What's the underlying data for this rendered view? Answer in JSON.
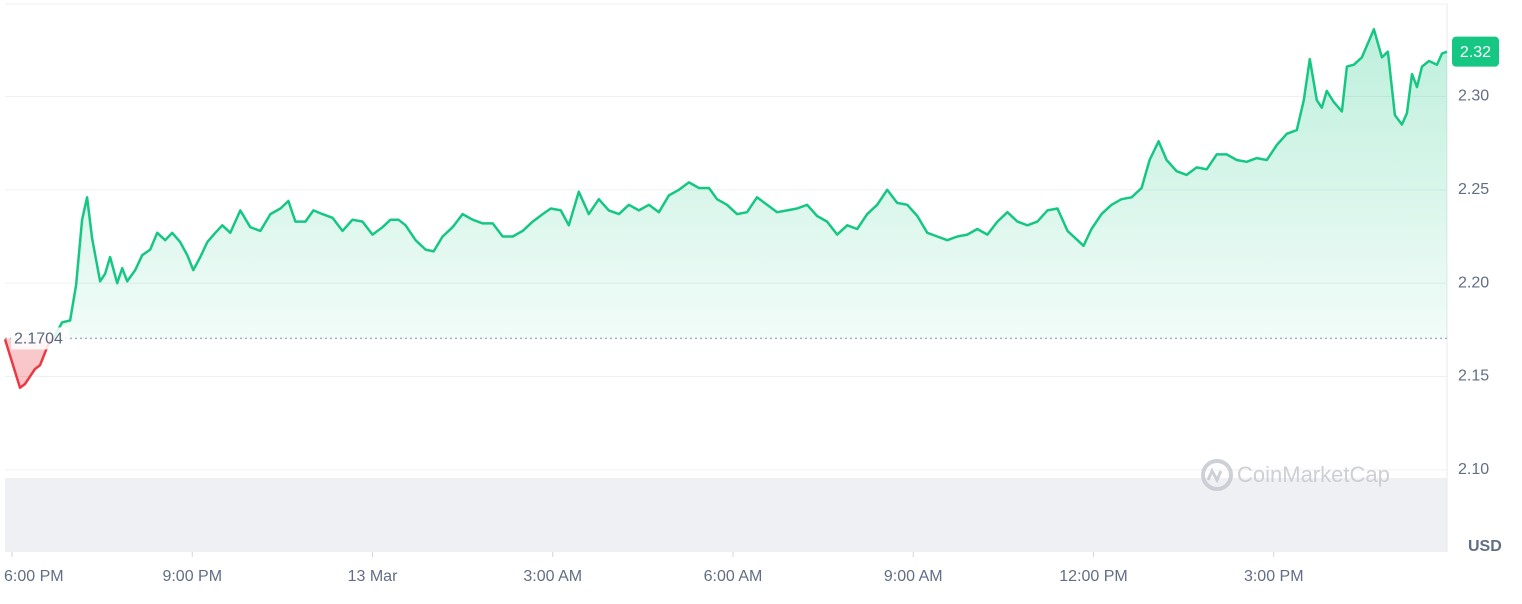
{
  "chart_data": {
    "type": "line",
    "x": [
      -7,
      8,
      13,
      23,
      28,
      36,
      43,
      50,
      58,
      64,
      70,
      75,
      80,
      88,
      93,
      98,
      105,
      110,
      115,
      123,
      130,
      138,
      145,
      153,
      160,
      168,
      175,
      181,
      188,
      195,
      203,
      210,
      218,
      228,
      238,
      248,
      258,
      268,
      276,
      283,
      293,
      301,
      310,
      320,
      330,
      340,
      350,
      360,
      370,
      378,
      386,
      393,
      403,
      413,
      421,
      430,
      440,
      450,
      460,
      470,
      480,
      490,
      500,
      510,
      520,
      530,
      538,
      548,
      556,
      566,
      576,
      586,
      596,
      606,
      616,
      626,
      636,
      646,
      656,
      666,
      676,
      686,
      696,
      704,
      714,
      724,
      734,
      744,
      754,
      764,
      774,
      784,
      794,
      804,
      814,
      824,
      834,
      844,
      854,
      864,
      874,
      884,
      894,
      904,
      914,
      924,
      934,
      944,
      954,
      964,
      974,
      984,
      994,
      1004,
      1014,
      1024,
      1034,
      1044,
      1054,
      1064,
      1070,
      1078,
      1088,
      1098,
      1108,
      1118,
      1128,
      1136,
      1145,
      1153,
      1163,
      1173,
      1183,
      1193,
      1203,
      1213,
      1223,
      1233,
      1243,
      1253,
      1263,
      1273,
      1283,
      1290,
      1296,
      1303,
      1308,
      1313,
      1320,
      1328,
      1333,
      1340,
      1348,
      1356,
      1360,
      1368,
      1374,
      1381,
      1388,
      1393,
      1398,
      1403,
      1408,
      1415,
      1423,
      1428,
      1433
    ],
    "values": [
      2.17,
      2.144,
      2.146,
      2.154,
      2.156,
      2.167,
      2.172,
      2.179,
      2.18,
      2.199,
      2.234,
      2.246,
      2.224,
      2.201,
      2.205,
      2.214,
      2.2,
      2.208,
      2.201,
      2.207,
      2.215,
      2.218,
      2.227,
      2.223,
      2.227,
      2.222,
      2.215,
      2.207,
      2.214,
      2.222,
      2.227,
      2.231,
      2.227,
      2.239,
      2.23,
      2.228,
      2.237,
      2.24,
      2.244,
      2.233,
      2.233,
      2.239,
      2.237,
      2.235,
      2.228,
      2.234,
      2.233,
      2.226,
      2.23,
      2.234,
      2.234,
      2.231,
      2.223,
      2.218,
      2.217,
      2.225,
      2.23,
      2.237,
      2.234,
      2.232,
      2.232,
      2.225,
      2.225,
      2.228,
      2.233,
      2.237,
      2.24,
      2.239,
      2.231,
      2.249,
      2.237,
      2.245,
      2.239,
      2.237,
      2.242,
      2.239,
      2.242,
      2.238,
      2.247,
      2.25,
      2.254,
      2.251,
      2.251,
      2.245,
      2.242,
      2.237,
      2.238,
      2.246,
      2.242,
      2.238,
      2.239,
      2.24,
      2.242,
      2.236,
      2.233,
      2.226,
      2.231,
      2.229,
      2.237,
      2.242,
      2.25,
      2.243,
      2.242,
      2.236,
      2.227,
      2.225,
      2.223,
      2.225,
      2.226,
      2.229,
      2.226,
      2.233,
      2.238,
      2.233,
      2.231,
      2.233,
      2.239,
      2.24,
      2.228,
      2.223,
      2.22,
      2.229,
      2.237,
      2.242,
      2.245,
      2.246,
      2.251,
      2.266,
      2.276,
      2.266,
      2.26,
      2.258,
      2.262,
      2.261,
      2.269,
      2.269,
      2.266,
      2.265,
      2.267,
      2.266,
      2.274,
      2.28,
      2.282,
      2.298,
      2.32,
      2.298,
      2.294,
      2.303,
      2.297,
      2.292,
      2.316,
      2.317,
      2.321,
      2.331,
      2.336,
      2.321,
      2.324,
      2.29,
      2.285,
      2.291,
      2.312,
      2.305,
      2.316,
      2.319,
      2.317,
      2.323,
      2.324
    ],
    "color": "#16c784",
    "negative_color": "#ea3943",
    "baseline": 2.1704,
    "last_label": "2.32",
    "xlim": [
      -7,
      1433
    ],
    "xticks": [
      {
        "value": 0,
        "label": "6:00 PM"
      },
      {
        "value": 180,
        "label": "9:00 PM"
      },
      {
        "value": 360,
        "label": "13 Mar"
      },
      {
        "value": 540,
        "label": "3:00 AM"
      },
      {
        "value": 720,
        "label": "6:00 AM"
      },
      {
        "value": 900,
        "label": "9:00 AM"
      },
      {
        "value": 1080,
        "label": "12:00 PM"
      },
      {
        "value": 1260,
        "label": "3:00 PM"
      }
    ],
    "ylim": [
      2.056,
      2.349
    ],
    "yticks": [
      {
        "value": 2.1,
        "label": "2.10"
      },
      2.15,
      {
        "value": 2.2,
        "label": "2.20"
      },
      2.25,
      {
        "value": 2.3,
        "label": "2.30"
      }
    ],
    "y_unit": "USD",
    "watermark": "CoinMarketCap",
    "grid": true
  }
}
